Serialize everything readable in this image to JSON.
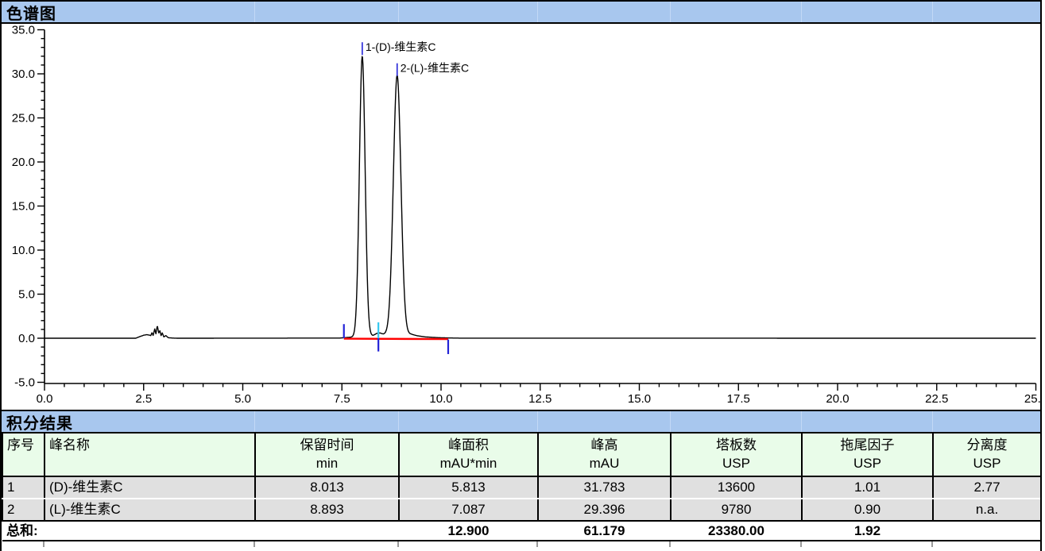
{
  "panels": {
    "chromatogram": {
      "title": "色谱图"
    },
    "results": {
      "title": "积分结果"
    }
  },
  "chart_data": {
    "type": "line",
    "title": "色谱图",
    "x_axis": {
      "min": 0,
      "max": 25,
      "major_tick_step": 2.5,
      "minor_tick_step": 0.5,
      "tick_labels": [
        "0.0",
        "2.5",
        "5.0",
        "7.5",
        "10.0",
        "12.5",
        "15.0",
        "17.5",
        "20.0",
        "22.5",
        "25.0"
      ]
    },
    "y_axis": {
      "min": -5,
      "max": 35,
      "major_tick_step": 5,
      "minor_tick_step": 1,
      "tick_labels": [
        "-5.0",
        "0.0",
        "5.0",
        "10.0",
        "15.0",
        "20.0",
        "25.0",
        "30.0",
        "35.0"
      ]
    },
    "grid": false,
    "trace_color": "#000000",
    "peaks": [
      {
        "number": 1,
        "label": "1-(D)-维生素C",
        "retention_time_min": 8.013,
        "height_mau": 31.783,
        "width_sigma_min": 0.072
      },
      {
        "number": 2,
        "label": "2-(L)-维生素C",
        "retention_time_min": 8.893,
        "height_mau": 29.396,
        "width_sigma_min": 0.095
      }
    ],
    "baseline": {
      "level_mau": 0,
      "integration_segment": {
        "start_min": 7.55,
        "end_min": 10.18,
        "color": "#ff0000"
      }
    },
    "integration_marks": [
      {
        "x_min": 7.55,
        "from_mau": 1.6,
        "to_mau": 0.0,
        "color": "#2323d7"
      },
      {
        "x_min": 8.42,
        "from_mau": 1.8,
        "to_mau": 0.0,
        "color": "#35c8f0"
      },
      {
        "x_min": 8.42,
        "from_mau": 0.0,
        "to_mau": -1.5,
        "color": "#2323d7"
      },
      {
        "x_min": 10.18,
        "from_mau": -0.15,
        "to_mau": -1.8,
        "color": "#2323d7"
      }
    ],
    "noise_points": [
      [
        0,
        0
      ],
      [
        2.3,
        0
      ],
      [
        2.4,
        0.18
      ],
      [
        2.5,
        0.34
      ],
      [
        2.58,
        0.4
      ],
      [
        2.64,
        0.36
      ],
      [
        2.68,
        0.3
      ],
      [
        2.71,
        0.62
      ],
      [
        2.74,
        0.32
      ],
      [
        2.78,
        1.05
      ],
      [
        2.81,
        0.5
      ],
      [
        2.845,
        1.45
      ],
      [
        2.88,
        0.6
      ],
      [
        2.91,
        0.85
      ],
      [
        2.94,
        0.3
      ],
      [
        2.97,
        0.6
      ],
      [
        3.01,
        0.15
      ],
      [
        3.06,
        0.3
      ],
      [
        3.12,
        0.06
      ],
      [
        3.22,
        0.02
      ],
      [
        3.35,
        0
      ],
      [
        7.45,
        0.02
      ],
      [
        7.62,
        0.08
      ],
      [
        8.28,
        0.3
      ],
      [
        8.38,
        0.55
      ],
      [
        8.46,
        0.6
      ],
      [
        8.55,
        0.45
      ],
      [
        9.25,
        0.45
      ],
      [
        9.4,
        0.28
      ],
      [
        9.6,
        0.15
      ],
      [
        9.9,
        0.07
      ],
      [
        10.18,
        0.03
      ],
      [
        10.5,
        0.01
      ],
      [
        25,
        0
      ]
    ]
  },
  "results_table": {
    "columns": [
      {
        "label": "序号",
        "unit": ""
      },
      {
        "label": "峰名称",
        "unit": ""
      },
      {
        "label": "保留时间",
        "unit": "min"
      },
      {
        "label": "峰面积",
        "unit": "mAU*min"
      },
      {
        "label": "峰高",
        "unit": "mAU"
      },
      {
        "label": "塔板数",
        "unit": "USP"
      },
      {
        "label": "拖尾因子",
        "unit": "USP"
      },
      {
        "label": "分离度",
        "unit": "USP"
      }
    ],
    "rows": [
      {
        "no": "1",
        "name": "(D)-维生素C",
        "rt": "8.013",
        "area": "5.813",
        "height": "31.783",
        "plates": "13600",
        "tailing": "1.01",
        "resolution": "2.77"
      },
      {
        "no": "2",
        "name": "(L)-维生素C",
        "rt": "8.893",
        "area": "7.087",
        "height": "29.396",
        "plates": "9780",
        "tailing": "0.90",
        "resolution": "n.a."
      }
    ],
    "sum_row": {
      "label": "总和:",
      "area": "12.900",
      "height": "61.179",
      "plates": "23380.00",
      "tailing": "1.92"
    }
  },
  "colors": {
    "panel_header_bg": "#a8c7ee",
    "table_header_bg": "#e9fce9",
    "data_row_bg": "#e0e0e0",
    "baseline_red": "#ff0000",
    "mark_blue": "#2323d7",
    "mark_cyan": "#35c8f0"
  }
}
